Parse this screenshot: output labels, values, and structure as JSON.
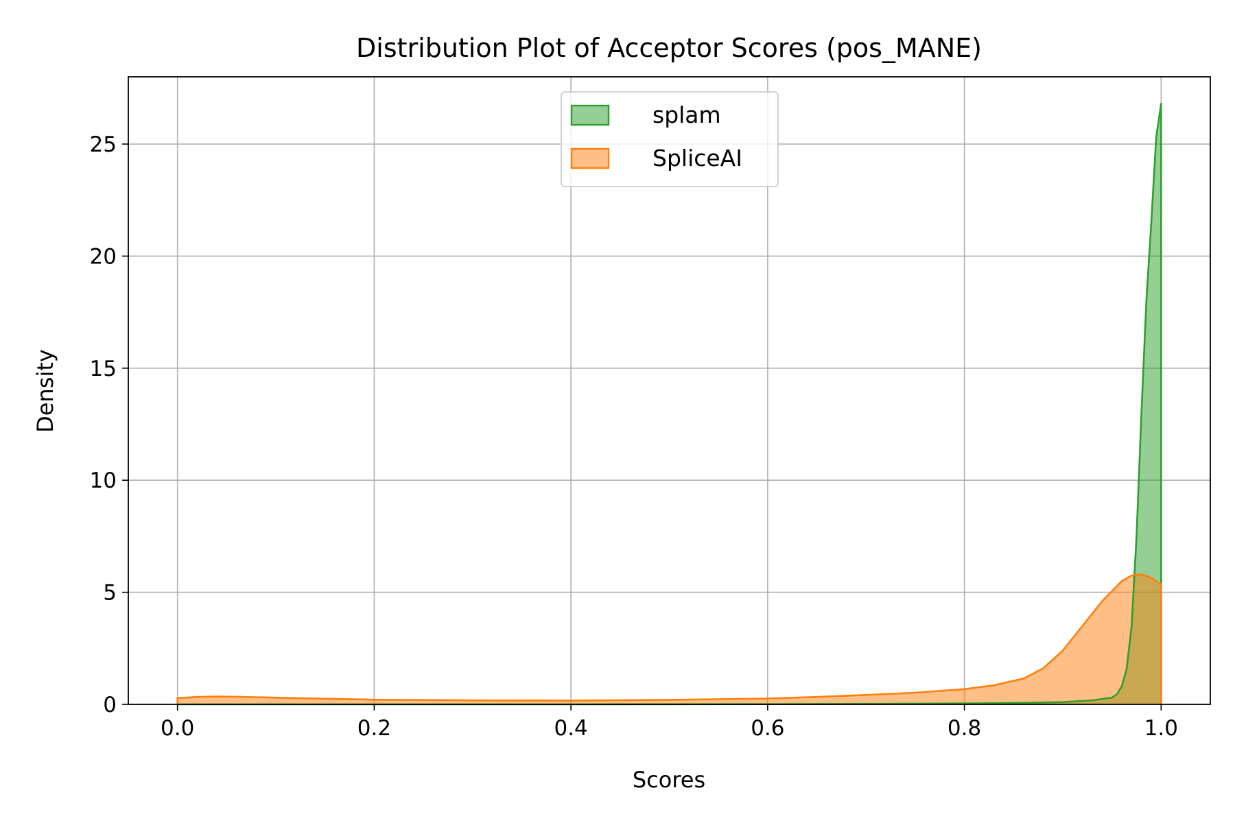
{
  "chart_data": {
    "type": "area",
    "title": "Distribution Plot of Acceptor Scores (pos_MANE)",
    "xlabel": "Scores",
    "ylabel": "Density",
    "xlim": [
      -0.05,
      1.05
    ],
    "ylim": [
      0,
      28
    ],
    "xticks": [
      0.0,
      0.2,
      0.4,
      0.6,
      0.8,
      1.0
    ],
    "xtick_labels": [
      "0.0",
      "0.2",
      "0.4",
      "0.6",
      "0.8",
      "1.0"
    ],
    "yticks": [
      0,
      5,
      10,
      15,
      20,
      25
    ],
    "ytick_labels": [
      "0",
      "5",
      "10",
      "15",
      "20",
      "25"
    ],
    "grid": true,
    "legend_position": "upper-center",
    "series": [
      {
        "name": "splam",
        "line_color": "#2ca02c",
        "fill_color": "#2ca02c",
        "fill_opacity": 0.5,
        "x": [
          0.0,
          0.2,
          0.4,
          0.6,
          0.7,
          0.8,
          0.85,
          0.9,
          0.93,
          0.95,
          0.955,
          0.96,
          0.965,
          0.97,
          0.975,
          0.98,
          0.985,
          0.99,
          0.995,
          1.0
        ],
        "y": [
          0.0,
          0.0,
          0.0,
          0.01,
          0.02,
          0.04,
          0.06,
          0.1,
          0.18,
          0.3,
          0.45,
          0.8,
          1.6,
          3.5,
          7.5,
          13.0,
          18.0,
          21.5,
          25.3,
          26.8
        ]
      },
      {
        "name": "SpliceAI",
        "line_color": "#ff7f0e",
        "fill_color": "#ff7f0e",
        "fill_opacity": 0.5,
        "x": [
          0.0,
          0.02,
          0.04,
          0.06,
          0.1,
          0.15,
          0.2,
          0.3,
          0.4,
          0.5,
          0.6,
          0.65,
          0.7,
          0.75,
          0.8,
          0.83,
          0.86,
          0.88,
          0.9,
          0.92,
          0.94,
          0.96,
          0.97,
          0.98,
          0.99,
          1.0
        ],
        "y": [
          0.28,
          0.33,
          0.35,
          0.34,
          0.3,
          0.25,
          0.21,
          0.18,
          0.17,
          0.2,
          0.26,
          0.33,
          0.42,
          0.52,
          0.68,
          0.85,
          1.15,
          1.6,
          2.4,
          3.5,
          4.6,
          5.5,
          5.75,
          5.8,
          5.65,
          5.35
        ]
      }
    ]
  }
}
